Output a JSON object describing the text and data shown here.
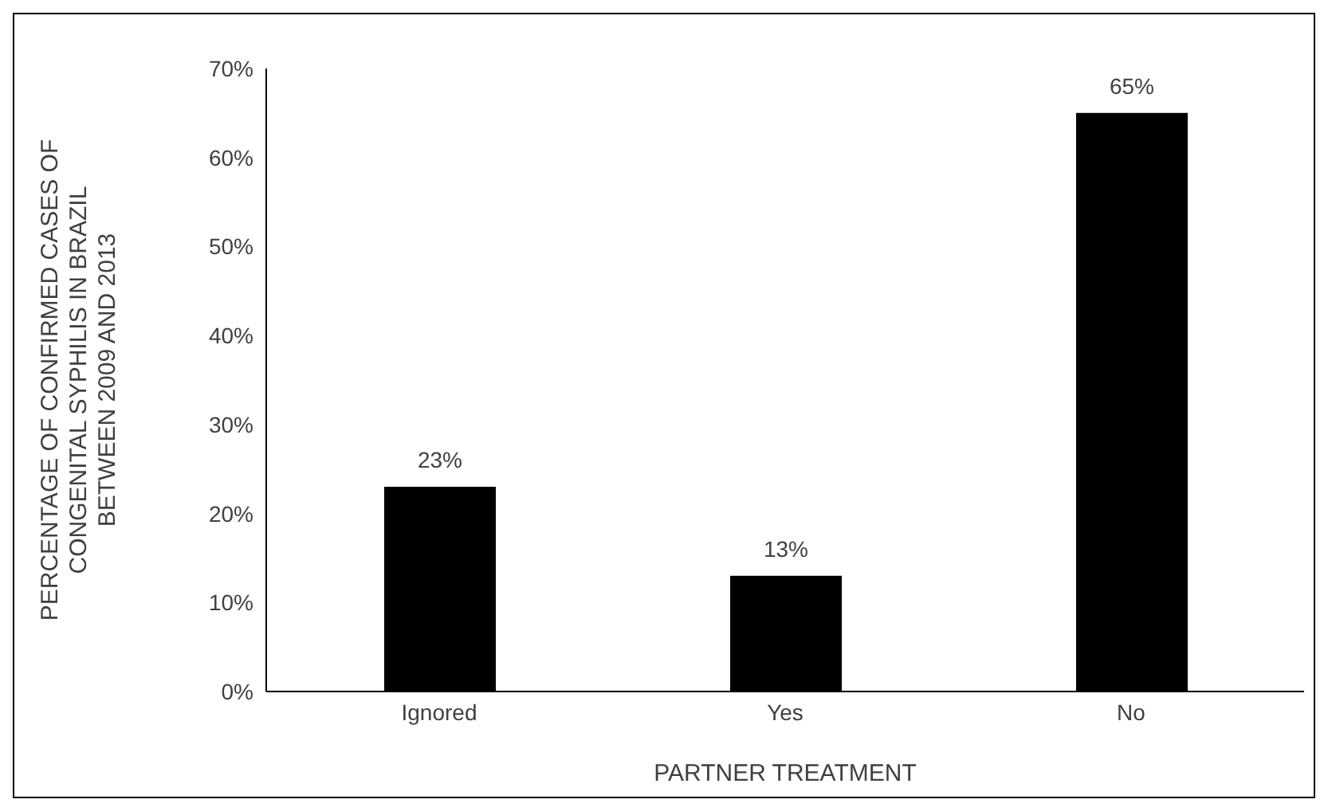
{
  "chart_data": {
    "type": "bar",
    "xlabel": "PARTNER TREATMENT",
    "ylabel": "PERCENTAGE OF CONFIRMED CASES OF\nCONGENITAL SYPHILIS IN BRAZIL\nBETWEEN 2009 AND 2013",
    "categories": [
      "Ignored",
      "Yes",
      "No"
    ],
    "values": [
      23,
      13,
      65
    ],
    "value_labels": [
      "23%",
      "13%",
      "65%"
    ],
    "color": "#000000",
    "ylim": [
      0,
      70
    ],
    "yticks": [
      {
        "value": 0,
        "label": "0%"
      },
      {
        "value": 10,
        "label": "10%"
      },
      {
        "value": 20,
        "label": "20%"
      },
      {
        "value": 30,
        "label": "30%"
      },
      {
        "value": 40,
        "label": "40%"
      },
      {
        "value": 50,
        "label": "50%"
      },
      {
        "value": 60,
        "label": "60%"
      },
      {
        "value": 70,
        "label": "70%"
      }
    ],
    "grid": false,
    "legend": false
  }
}
